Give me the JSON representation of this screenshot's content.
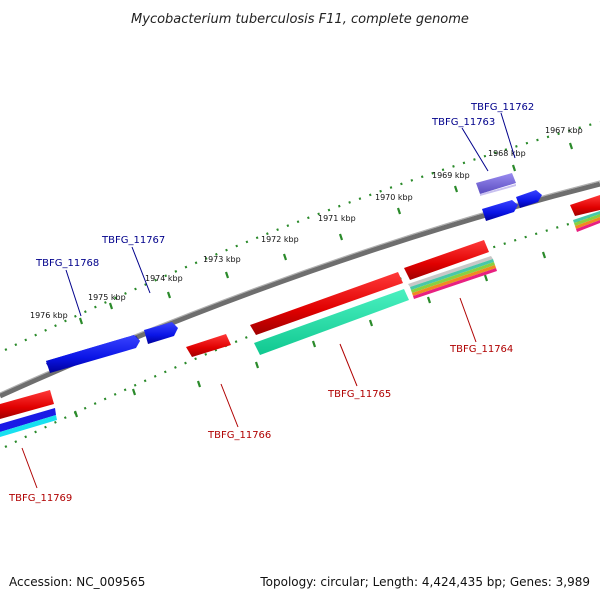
{
  "title": "Mycobacterium tuberculosis F11, complete genome",
  "accession": "Accession: NC_009565",
  "summary": "Topology: circular; Length: 4,424,435 bp; Genes: 3,989",
  "scale_labels": [
    "1976 kbp",
    "1975 kbp",
    "1974 kbp",
    "1973 kbp",
    "1972 kbp",
    "1971 kbp",
    "1970 kbp",
    "1969 kbp",
    "1968 kbp",
    "1967 kbp"
  ],
  "colors": {
    "backbone": "#7a7a7a",
    "tick": "#2a8a2a",
    "forward_gene": "#0a14e6",
    "forward_gene_light": "#6a5acd",
    "reverse_gene": "#e60a0a",
    "reverse_feature": "#19e6a8",
    "forward_label": "#00008b",
    "reverse_label": "#b00000"
  },
  "gene_labels": {
    "forward": [
      "TBFG_11768",
      "TBFG_11767",
      "TBFG_11763",
      "TBFG_11762"
    ],
    "reverse": [
      "TBFG_11769",
      "TBFG_11766",
      "TBFG_11765",
      "TBFG_11764"
    ]
  }
}
